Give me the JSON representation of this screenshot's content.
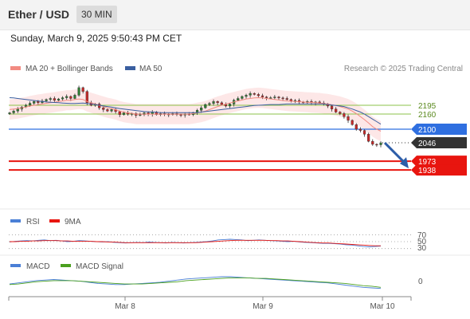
{
  "header": {
    "pair": "Ether / USD",
    "timeframe": "30 MIN"
  },
  "datetime": "Sunday, March 9, 2025 9:50:43 PM CET",
  "legend": {
    "ma20": "MA 20 + Bollinger Bands",
    "ma50": "MA 50",
    "research": "Research © 2025 Trading Central",
    "colors": {
      "ma20": "#f28b82",
      "ma50": "#3a5fa0",
      "bands": "#fde4e4"
    }
  },
  "levels": {
    "resistance": [
      {
        "value": 2195,
        "label": "2195",
        "color": "#8bc34a"
      },
      {
        "value": 2160,
        "label": "2160",
        "color": "#8bc34a"
      }
    ],
    "pivot": {
      "value": 2100,
      "label": "2100",
      "color": "#2f6fe0"
    },
    "last": {
      "value": 2046,
      "label": "2046",
      "color": "#333333"
    },
    "support": [
      {
        "value": 1973,
        "label": "1973",
        "color": "#e8150f"
      },
      {
        "value": 1938,
        "label": "1938",
        "color": "#e8150f"
      }
    ]
  },
  "rsi_panel": {
    "rsi_label": "RSI",
    "ma_label": "9MA",
    "levels": [
      "70",
      "50",
      "30"
    ],
    "colors": {
      "rsi": "#4a7fd6",
      "ma": "#e8150f"
    }
  },
  "macd_panel": {
    "macd_label": "MACD",
    "signal_label": "MACD Signal",
    "zero_label": "0",
    "colors": {
      "macd": "#4a7fd6",
      "signal": "#4aa01e"
    }
  },
  "x_axis": {
    "labels": [
      "Mar 8",
      "Mar 9",
      "Mar 10"
    ]
  },
  "chart_data": {
    "type": "candlestick",
    "title": "Ether / USD",
    "timeframe": "30 MIN",
    "price_range": [
      1910,
      2290
    ],
    "x_labels": [
      "Mar 8",
      "Mar 9",
      "Mar 10"
    ],
    "close": [
      2165,
      2172,
      2180,
      2188,
      2195,
      2203,
      2210,
      2205,
      2212,
      2218,
      2222,
      2215,
      2220,
      2225,
      2230,
      2222,
      2235,
      2265,
      2250,
      2205,
      2195,
      2200,
      2185,
      2178,
      2172,
      2178,
      2170,
      2158,
      2165,
      2160,
      2162,
      2155,
      2158,
      2165,
      2160,
      2168,
      2158,
      2162,
      2160,
      2158,
      2162,
      2158,
      2156,
      2160,
      2158,
      2165,
      2175,
      2185,
      2198,
      2202,
      2210,
      2205,
      2198,
      2192,
      2200,
      2215,
      2222,
      2230,
      2235,
      2242,
      2238,
      2233,
      2228,
      2225,
      2225,
      2228,
      2224,
      2222,
      2218,
      2212,
      2214,
      2208,
      2206,
      2210,
      2205,
      2208,
      2204,
      2200,
      2192,
      2180,
      2168,
      2162,
      2150,
      2135,
      2118,
      2100,
      2095,
      2080,
      2052,
      2040,
      2038,
      2046
    ],
    "ma20": [
      2178,
      2180,
      2182,
      2185,
      2188,
      2192,
      2195,
      2198,
      2200,
      2203,
      2205,
      2207,
      2210,
      2212,
      2215,
      2215,
      2218,
      2220,
      2218,
      2210,
      2205,
      2200,
      2195,
      2190,
      2185,
      2182,
      2178,
      2172,
      2168,
      2165,
      2163,
      2160,
      2160,
      2160,
      2160,
      2160,
      2160,
      2160,
      2160,
      2160,
      2160,
      2160,
      2160,
      2160,
      2160,
      2162,
      2165,
      2168,
      2172,
      2178,
      2184,
      2190,
      2195,
      2200,
      2204,
      2208,
      2212,
      2216,
      2220,
      2222,
      2224,
      2225,
      2224,
      2222,
      2220,
      2218,
      2216,
      2214,
      2212,
      2211,
      2210,
      2209,
      2208,
      2207,
      2206,
      2205,
      2204,
      2202,
      2200,
      2197,
      2194,
      2190,
      2185,
      2180,
      2172,
      2162,
      2150,
      2138,
      2125,
      2110,
      2100,
      2092
    ],
    "ma50": [
      2225,
      2224,
      2222,
      2220,
      2218,
      2216,
      2214,
      2212,
      2210,
      2208,
      2207,
      2206,
      2205,
      2204,
      2203,
      2202,
      2202,
      2203,
      2204,
      2202,
      2200,
      2198,
      2195,
      2192,
      2190,
      2188,
      2185,
      2182,
      2180,
      2178,
      2176,
      2174,
      2172,
      2170,
      2169,
      2168,
      2167,
      2166,
      2166,
      2166,
      2166,
      2166,
      2166,
      2166,
      2166,
      2166,
      2166,
      2168,
      2170,
      2172,
      2174,
      2176,
      2178,
      2180,
      2182,
      2184,
      2186,
      2188,
      2190,
      2192,
      2194,
      2195,
      2196,
      2197,
      2198,
      2198,
      2198,
      2199,
      2200,
      2200,
      2200,
      2200,
      2200,
      2200,
      2200,
      2200,
      2200,
      2200,
      2198,
      2196,
      2194,
      2192,
      2190,
      2185,
      2180,
      2174,
      2168,
      2160,
      2150,
      2140,
      2130,
      2120
    ],
    "bollinger_width": 40,
    "levels": [
      2195,
      2160,
      2100,
      2046,
      1973,
      1938
    ],
    "projection": {
      "from": 2046,
      "to": 1938
    },
    "rsi": [
      49,
      51,
      52,
      53,
      52,
      54,
      55,
      53,
      54,
      52,
      50,
      51,
      53,
      52,
      51,
      50,
      49,
      50,
      48,
      47,
      46,
      47,
      48,
      47,
      49,
      48,
      47,
      46,
      48,
      47,
      46,
      47,
      48,
      49,
      50,
      52,
      55,
      56,
      57,
      56,
      55,
      53,
      54,
      55,
      54,
      53,
      52,
      51,
      50,
      51,
      49,
      48,
      47,
      46,
      45,
      45,
      44,
      43,
      41,
      40,
      38,
      36,
      35,
      36,
      37
    ],
    "rsi_ma": [
      50,
      50,
      51,
      51,
      52,
      52,
      53,
      53,
      53,
      52,
      52,
      51,
      51,
      51,
      51,
      50,
      50,
      49,
      49,
      48,
      47,
      47,
      47,
      47,
      47,
      47,
      47,
      47,
      47,
      47,
      47,
      47,
      47,
      48,
      49,
      50,
      51,
      52,
      53,
      54,
      54,
      54,
      54,
      54,
      54,
      53,
      53,
      52,
      52,
      51,
      50,
      49,
      48,
      47,
      46,
      46,
      45,
      44,
      43,
      42,
      41,
      40,
      39,
      38,
      38
    ],
    "rsi_levels": [
      70,
      50,
      30
    ],
    "macd": [
      -3,
      -1,
      1,
      3,
      4,
      5,
      4,
      3,
      2,
      0,
      -2,
      -3,
      -4,
      -4,
      -3,
      -2,
      -1,
      0,
      2,
      4,
      6,
      7,
      8,
      9,
      10,
      10,
      9,
      8,
      7,
      6,
      5,
      4,
      3,
      2,
      1,
      0,
      -1,
      -3,
      -5,
      -7,
      -9,
      -10,
      -11
    ],
    "macd_signal": [
      -4,
      -3,
      -1,
      1,
      2,
      3,
      3,
      3,
      2,
      1,
      0,
      -1,
      -2,
      -3,
      -3,
      -3,
      -2,
      -1,
      0,
      1,
      3,
      4,
      5,
      6,
      7,
      8,
      8,
      8,
      7,
      7,
      6,
      5,
      4,
      3,
      2,
      1,
      0,
      -1,
      -2,
      -4,
      -6,
      -7,
      -9
    ]
  }
}
